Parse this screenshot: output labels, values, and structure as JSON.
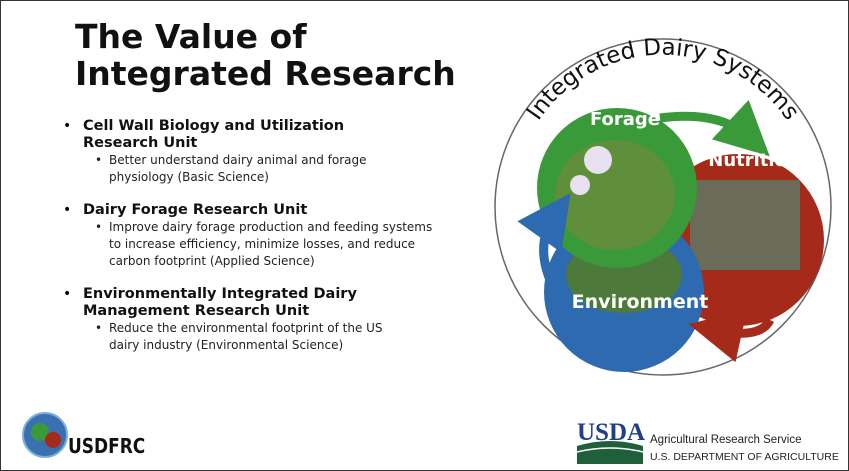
{
  "title": {
    "lines": [
      "The Value of",
      "Integrated Research"
    ]
  },
  "units": [
    {
      "name": "Cell Wall Biology and Utilization Research Unit",
      "description": "Better understand dairy animal and forage physiology (Basic Science)"
    },
    {
      "name": "Dairy Forage Research Unit",
      "description": "Improve dairy forage production and feeding systems to increase efficiency, minimize losses, and reduce carbon footprint (Applied Science)"
    },
    {
      "name": "Environmentally Integrated Dairy Management Research Unit",
      "description": "Reduce the environmental footprint of the US dairy industry (Environmental Science)"
    }
  ],
  "diagram": {
    "title": "Integrated Dairy Systems",
    "nodes": [
      {
        "label": "Forage"
      },
      {
        "label": "Nutrition"
      },
      {
        "label": "Environment"
      }
    ]
  },
  "footer": {
    "logo": "USDFRC",
    "agency": "USDA",
    "service": "Agricultural Research Service",
    "department": "U.S. DEPARTMENT OF AGRICULTURE"
  }
}
